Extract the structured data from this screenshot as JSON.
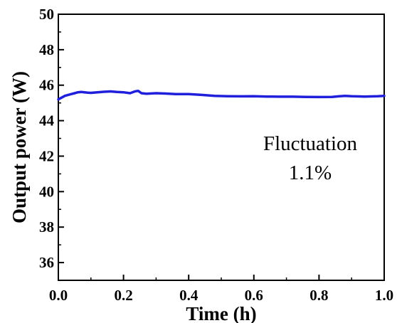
{
  "chart_data": {
    "type": "line",
    "title": "",
    "xlabel": "Time (h)",
    "ylabel": "Output power (W)",
    "xlim": [
      0.0,
      1.0
    ],
    "ylim": [
      35,
      50
    ],
    "xticks": [
      {
        "value": 0.0,
        "label": "0.0"
      },
      {
        "value": 0.2,
        "label": "0.2"
      },
      {
        "value": 0.4,
        "label": "0.4"
      },
      {
        "value": 0.6,
        "label": "0.6"
      },
      {
        "value": 0.8,
        "label": "0.8"
      },
      {
        "value": 1.0,
        "label": "1.0"
      }
    ],
    "yticks": [
      {
        "value": 36,
        "label": "36"
      },
      {
        "value": 38,
        "label": "38"
      },
      {
        "value": 40,
        "label": "40"
      },
      {
        "value": 42,
        "label": "42"
      },
      {
        "value": 44,
        "label": "44"
      },
      {
        "value": 46,
        "label": "46"
      },
      {
        "value": 48,
        "label": "48"
      },
      {
        "value": 50,
        "label": "50"
      }
    ],
    "grid": false,
    "legend": "none",
    "annotation": {
      "line1": "Fluctuation",
      "line2": "1.1%"
    },
    "series": [
      {
        "color": "#1f1fdc",
        "x": [
          0.0,
          0.01,
          0.02,
          0.03,
          0.04,
          0.05,
          0.06,
          0.07,
          0.08,
          0.09,
          0.1,
          0.12,
          0.14,
          0.16,
          0.18,
          0.2,
          0.22,
          0.235,
          0.245,
          0.255,
          0.27,
          0.3,
          0.33,
          0.36,
          0.4,
          0.44,
          0.48,
          0.52,
          0.56,
          0.6,
          0.64,
          0.68,
          0.72,
          0.76,
          0.8,
          0.84,
          0.86,
          0.88,
          0.9,
          0.94,
          0.98,
          1.0
        ],
        "y": [
          45.2,
          45.3,
          45.4,
          45.45,
          45.5,
          45.55,
          45.6,
          45.62,
          45.6,
          45.58,
          45.57,
          45.6,
          45.63,
          45.65,
          45.62,
          45.6,
          45.55,
          45.65,
          45.68,
          45.55,
          45.52,
          45.55,
          45.53,
          45.5,
          45.5,
          45.45,
          45.4,
          45.38,
          45.37,
          45.38,
          45.36,
          45.35,
          45.35,
          45.34,
          45.33,
          45.34,
          45.37,
          45.4,
          45.38,
          45.36,
          45.38,
          45.4
        ]
      }
    ]
  }
}
